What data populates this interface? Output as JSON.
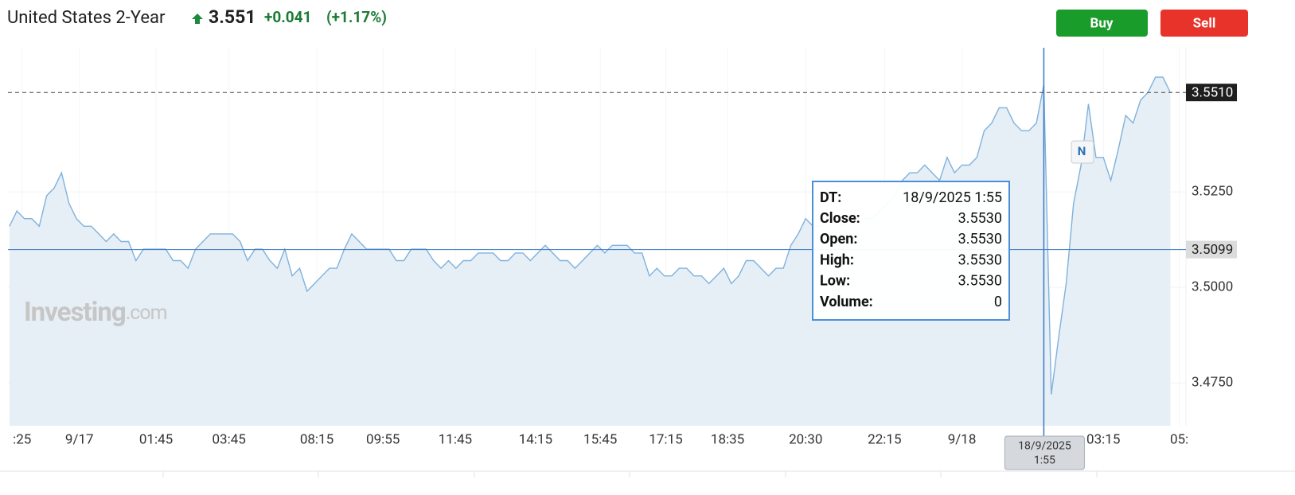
{
  "header": {
    "title": "United States 2-Year",
    "price": "3.551",
    "change": "+0.041",
    "change_pct": "(+1.17%)"
  },
  "buttons": {
    "buy": "Buy",
    "sell": "Sell"
  },
  "watermark": {
    "brand": "Investing",
    "suffix": ".com"
  },
  "news_marker": "N",
  "chart_data": {
    "type": "area",
    "color": "#7fb2dd",
    "fill": "#e6eef6",
    "values": [
      3.516,
      3.52,
      3.518,
      3.518,
      3.516,
      3.524,
      3.526,
      3.53,
      3.522,
      3.518,
      3.516,
      3.516,
      3.514,
      3.512,
      3.514,
      3.512,
      3.512,
      3.507,
      3.51,
      3.51,
      3.51,
      3.51,
      3.507,
      3.507,
      3.505,
      3.51,
      3.512,
      3.514,
      3.514,
      3.514,
      3.514,
      3.512,
      3.507,
      3.51,
      3.51,
      3.507,
      3.505,
      3.51,
      3.503,
      3.505,
      3.499,
      3.501,
      3.503,
      3.505,
      3.505,
      3.51,
      3.514,
      3.512,
      3.51,
      3.51,
      3.51,
      3.51,
      3.507,
      3.507,
      3.51,
      3.51,
      3.51,
      3.507,
      3.505,
      3.507,
      3.505,
      3.507,
      3.507,
      3.509,
      3.509,
      3.509,
      3.507,
      3.507,
      3.509,
      3.509,
      3.507,
      3.509,
      3.511,
      3.509,
      3.507,
      3.507,
      3.505,
      3.507,
      3.509,
      3.511,
      3.509,
      3.511,
      3.511,
      3.511,
      3.509,
      3.509,
      3.503,
      3.505,
      3.503,
      3.503,
      3.505,
      3.505,
      3.503,
      3.503,
      3.501,
      3.503,
      3.505,
      3.501,
      3.503,
      3.507,
      3.507,
      3.505,
      3.503,
      3.505,
      3.505,
      3.511,
      3.514,
      3.518,
      3.516,
      3.516,
      3.518,
      3.518,
      3.516,
      3.518,
      3.518,
      3.518,
      3.518,
      3.52,
      3.522,
      3.524,
      3.528,
      3.53,
      3.53,
      3.532,
      3.53,
      3.528,
      3.534,
      3.53,
      3.532,
      3.532,
      3.534,
      3.541,
      3.543,
      3.547,
      3.547,
      3.543,
      3.541,
      3.541,
      3.543,
      3.553,
      3.472,
      3.487,
      3.501,
      3.522,
      3.532,
      3.548,
      3.534,
      3.534,
      3.528,
      3.536,
      3.545,
      3.543,
      3.549,
      3.551,
      3.555,
      3.555,
      3.551
    ],
    "xlim": [
      -0.2,
      158.1
    ],
    "xticks": [
      {
        "value": 1.7,
        "label": ":25"
      },
      {
        "value": 9.4,
        "label": "9/17"
      },
      {
        "value": 19.7,
        "label": "01:45"
      },
      {
        "value": 29.5,
        "label": "03:45"
      },
      {
        "value": 41.3,
        "label": "08:15"
      },
      {
        "value": 50.2,
        "label": "09:55"
      },
      {
        "value": 59.9,
        "label": "11:45"
      },
      {
        "value": 70.7,
        "label": "14:15"
      },
      {
        "value": 79.4,
        "label": "15:45"
      },
      {
        "value": 88.2,
        "label": "17:15"
      },
      {
        "value": 96.5,
        "label": "18:35"
      },
      {
        "value": 107.0,
        "label": "20:30"
      },
      {
        "value": 117.6,
        "label": "22:15"
      },
      {
        "value": 128.0,
        "label": "9/18"
      },
      {
        "value": 147.0,
        "label": "03:15"
      },
      {
        "value": 157.2,
        "label": "05:"
      }
    ],
    "ylim": [
      3.4638,
      3.5627
    ],
    "yticks": [
      {
        "value": 3.475,
        "label": "3.4750"
      },
      {
        "value": 3.5,
        "label": "3.5000"
      },
      {
        "value": 3.525,
        "label": "3.5250"
      }
    ],
    "grid": true,
    "reference_lines": [
      {
        "value": 3.551,
        "label": "3.5510",
        "style": "dashed"
      },
      {
        "value": 3.5099,
        "label": "3.5099",
        "style": "solid"
      }
    ],
    "crosshair_label": [
      "18/9/2025",
      "1:55"
    ],
    "tooltip": [
      {
        "label": "DT:",
        "value": "18/9/2025 1:55"
      },
      {
        "label": "Close:",
        "value": "3.5530"
      },
      {
        "label": "Open:",
        "value": "3.5530"
      },
      {
        "label": "High:",
        "value": "3.5530"
      },
      {
        "label": "Low:",
        "value": "3.5530"
      },
      {
        "label": "Volume:",
        "value": "0"
      }
    ]
  }
}
